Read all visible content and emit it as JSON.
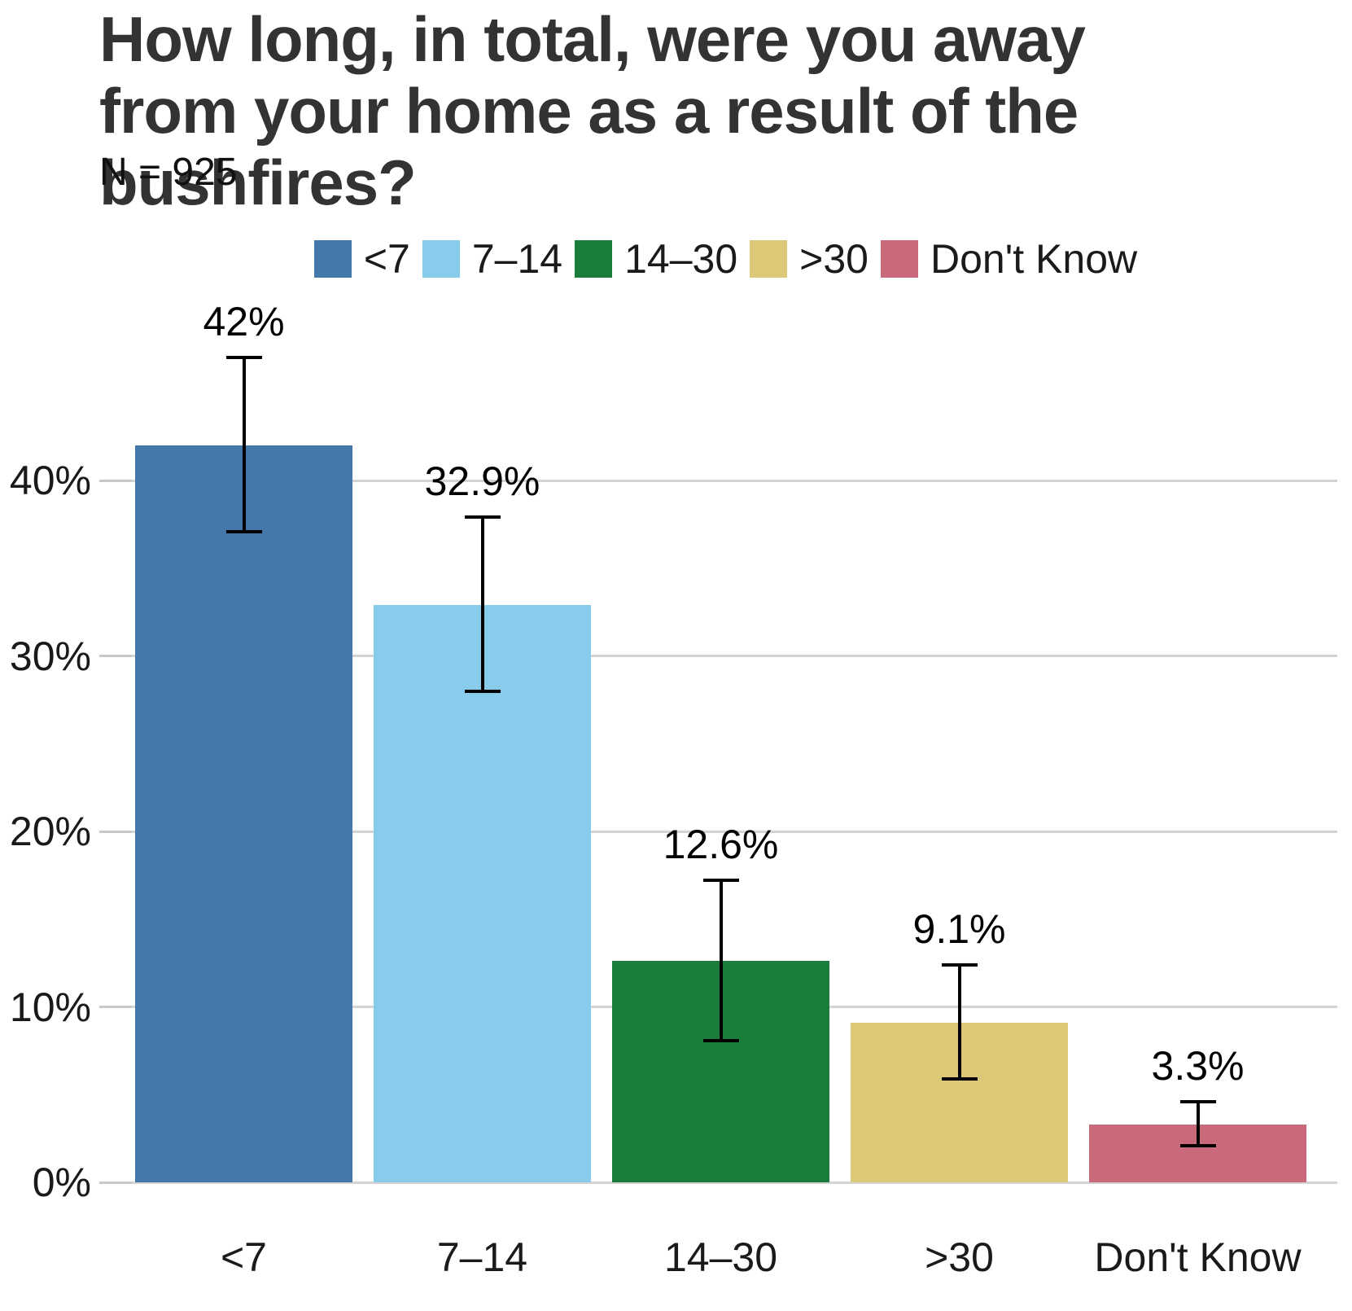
{
  "header": {
    "title": "How long, in total, were you away from your home as a result of the bushfires?",
    "subtitle": "N = 925"
  },
  "chart_data": {
    "type": "bar",
    "title": "How long, in total, were you away from your home as a result of the bushfires?",
    "subtitle": "N = 925",
    "sample_size": "N = 925",
    "categories": [
      "<7",
      "7–14",
      "14–30",
      ">30",
      "Don't Know"
    ],
    "values": [
      42,
      32.9,
      12.6,
      9.1,
      3.3
    ],
    "value_labels": [
      "42%",
      "32.9%",
      "12.6%",
      "9.1%",
      "3.3%"
    ],
    "error_low": [
      37.0,
      27.9,
      8.0,
      5.8,
      2.0
    ],
    "error_high": [
      47.1,
      38.0,
      17.3,
      12.5,
      4.7
    ],
    "colors": [
      "#4478a8",
      "#89cbea",
      "#1a7d3b",
      "#dbc977",
      "#c96a7a"
    ],
    "error_bar_color": "#000000",
    "gridline_color": "#d4d4d4",
    "legend": {
      "position": "top",
      "entries": [
        "<7",
        "7–14",
        "14–30",
        ">30",
        "Don't Know"
      ]
    },
    "xlabel": "",
    "ylabel": "",
    "ylim": [
      0,
      50
    ],
    "yticks": [
      0,
      10,
      20,
      30,
      40
    ],
    "ytick_labels": [
      "0%",
      "10%",
      "20%",
      "30%",
      "40%"
    ],
    "grid": true
  }
}
